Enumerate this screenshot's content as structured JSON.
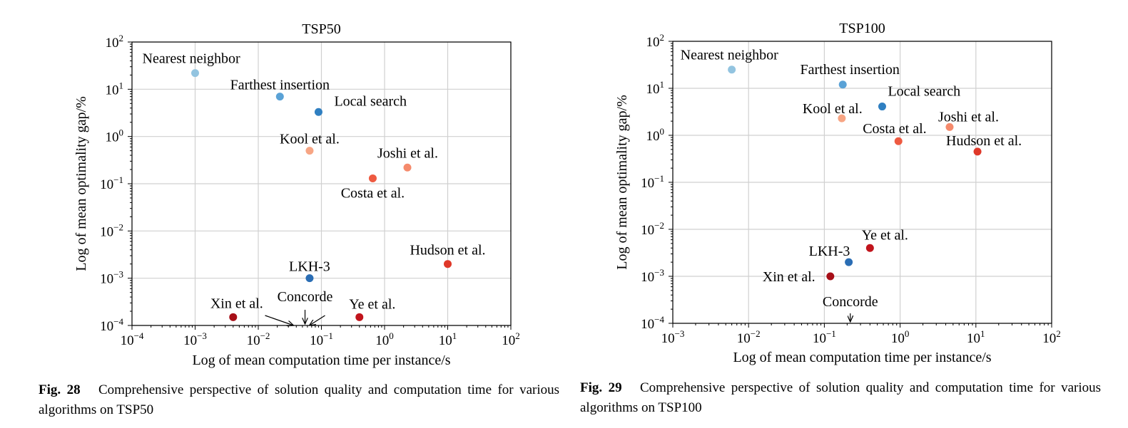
{
  "chart_data": [
    {
      "type": "scatter",
      "title": "TSP50",
      "xlabel": "Log of mean computation time per instance/s",
      "ylabel": "Log of mean optimality gap/%",
      "xscale": "log",
      "yscale": "log",
      "xlim": [
        0.0001,
        100
      ],
      "ylim": [
        0.0001,
        100
      ],
      "grid": true,
      "points": [
        {
          "label": "Nearest neighbor",
          "x": 0.001,
          "y": 22,
          "color": "#93c4e0"
        },
        {
          "label": "Farthest insertion",
          "x": 0.022,
          "y": 7,
          "color": "#5aa2d6"
        },
        {
          "label": "Local search",
          "x": 0.09,
          "y": 3.3,
          "color": "#2f7fc1"
        },
        {
          "label": "Kool et al.",
          "x": 0.065,
          "y": 0.5,
          "color": "#f7a584"
        },
        {
          "label": "Joshi et al.",
          "x": 2.3,
          "y": 0.22,
          "color": "#f58a6c"
        },
        {
          "label": "Costa et al.",
          "x": 0.65,
          "y": 0.13,
          "color": "#ee5a41"
        },
        {
          "label": "Hudson et al.",
          "x": 10,
          "y": 0.002,
          "color": "#df3829"
        },
        {
          "label": "LKH-3",
          "x": 0.065,
          "y": 0.001,
          "color": "#2a6db4"
        },
        {
          "label": "Xin et al.",
          "x": 0.004,
          "y": 0.00015,
          "color": "#a70f18"
        },
        {
          "label": "Ye et al.",
          "x": 0.4,
          "y": 0.00015,
          "color": "#c1141c"
        }
      ],
      "annotations": [
        {
          "text": "Concorde",
          "x": 0.055,
          "y": 0.0001
        }
      ]
    },
    {
      "type": "scatter",
      "title": "TSP100",
      "xlabel": "Log of mean computation time per instance/s",
      "ylabel": "Log of mean optimality gap/%",
      "xscale": "log",
      "yscale": "log",
      "xlim": [
        0.001,
        100
      ],
      "ylim": [
        0.0001,
        100
      ],
      "grid": true,
      "points": [
        {
          "label": "Nearest neighbor",
          "x": 0.006,
          "y": 25,
          "color": "#93c4e0"
        },
        {
          "label": "Farthest insertion",
          "x": 0.175,
          "y": 12,
          "color": "#5aa2d6"
        },
        {
          "label": "Local search",
          "x": 0.58,
          "y": 4.1,
          "color": "#2f7fc1"
        },
        {
          "label": "Kool et al.",
          "x": 0.17,
          "y": 2.3,
          "color": "#f7a584"
        },
        {
          "label": "Joshi et al.",
          "x": 4.5,
          "y": 1.5,
          "color": "#f58a6c"
        },
        {
          "label": "Costa et al.",
          "x": 0.95,
          "y": 0.75,
          "color": "#ee5a41"
        },
        {
          "label": "Hudson et al.",
          "x": 10.5,
          "y": 0.45,
          "color": "#df3829"
        },
        {
          "label": "Ye et al.",
          "x": 0.4,
          "y": 0.004,
          "color": "#c1141c"
        },
        {
          "label": "LKH-3",
          "x": 0.21,
          "y": 0.002,
          "color": "#2a6db4"
        },
        {
          "label": "Xin et al.",
          "x": 0.12,
          "y": 0.001,
          "color": "#a70f18"
        }
      ],
      "annotations": [
        {
          "text": "Concorde",
          "x": 0.22,
          "y": 0.0001
        }
      ]
    }
  ],
  "captions": [
    {
      "fig": "Fig. 28",
      "text": "Comprehensive perspective of solution quality and computation time for various algorithms on TSP50"
    },
    {
      "fig": "Fig. 29",
      "text": "Comprehensive perspective of solution quality and computation time for various algorithms on TSP100"
    }
  ]
}
